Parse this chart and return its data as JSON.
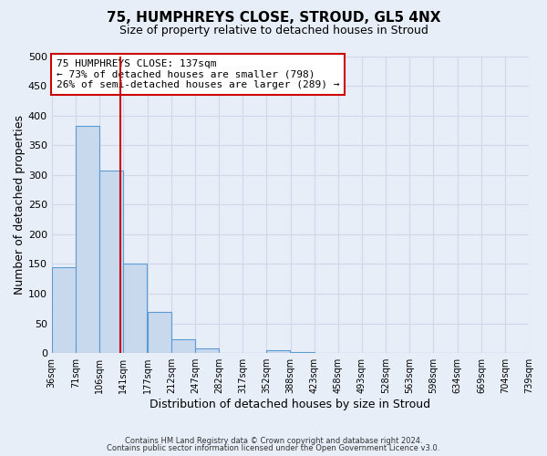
{
  "title_line1": "75, HUMPHREYS CLOSE, STROUD, GL5 4NX",
  "title_line2": "Size of property relative to detached houses in Stroud",
  "xlabel": "Distribution of detached houses by size in Stroud",
  "ylabel": "Number of detached properties",
  "property_size": 137,
  "bin_edges": [
    36,
    71,
    106,
    141,
    177,
    212,
    247,
    282,
    317,
    352,
    388,
    423,
    458,
    493,
    528,
    563,
    598,
    634,
    669,
    704,
    739
  ],
  "bar_heights": [
    145,
    383,
    308,
    150,
    70,
    23,
    8,
    0,
    0,
    5,
    2,
    0,
    0,
    0,
    0,
    0,
    0,
    0,
    0,
    1
  ],
  "bar_color": "#c9d9ed",
  "bar_edge_color": "#5b9bd5",
  "vline_color": "#cc0000",
  "vline_x": 137,
  "ylim": [
    0,
    500
  ],
  "yticks": [
    0,
    50,
    100,
    150,
    200,
    250,
    300,
    350,
    400,
    450,
    500
  ],
  "annotation_title": "75 HUMPHREYS CLOSE: 137sqm",
  "annotation_line1": "← 73% of detached houses are smaller (798)",
  "annotation_line2": "26% of semi-detached houses are larger (289) →",
  "annotation_box_color": "#ffffff",
  "annotation_box_edge_color": "#cc0000",
  "grid_color": "#d0d8e8",
  "background_color": "#e8eef8",
  "footer_line1": "Contains HM Land Registry data © Crown copyright and database right 2024.",
  "footer_line2": "Contains public sector information licensed under the Open Government Licence v3.0."
}
